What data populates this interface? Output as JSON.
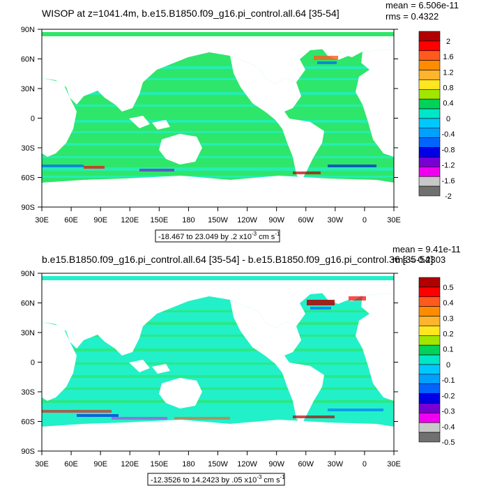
{
  "panels": [
    {
      "title": "WISOP at z=1041.4m, b.e15.B1850.f09_g16.pi_control.all.64 [35-54]",
      "mean_label": "mean = 6.506e-11",
      "rms_label": "rms = 0.4322",
      "range_label": "-18.467 to 23.049 by .2 x10",
      "range_exp": "-3",
      "range_units": "cm s",
      "range_units_exp": "-1",
      "colorbar_labels": [
        "2",
        "1.6",
        "1.2",
        "0.8",
        "0.4",
        "0",
        "-0.4",
        "-0.8",
        "-1.2",
        "-1.6",
        "-2"
      ]
    },
    {
      "title": "b.e15.B1850.f09_g16.pi_control.all.64 [35-54] - b.e15.B1850.f09_g16.pi_control.36 [35-54]",
      "mean_label": "mean = 9.41e-11",
      "rms_label": "rms = 0.2303",
      "range_label": "-12.3526 to 14.2423 by .05 x10",
      "range_exp": "-3",
      "range_units": "cm s",
      "range_units_exp": "-1",
      "colorbar_labels": [
        "0.5",
        "0.4",
        "0.3",
        "0.2",
        "0.1",
        "0",
        "-0.1",
        "-0.2",
        "-0.3",
        "-0.4",
        "-0.5"
      ]
    }
  ],
  "lat_labels": [
    "90N",
    "60N",
    "30N",
    "0",
    "30S",
    "60S",
    "90S"
  ],
  "lon_labels": [
    "30E",
    "60E",
    "90E",
    "120E",
    "150E",
    "180",
    "150W",
    "120W",
    "90W",
    "60W",
    "30W",
    "0",
    "30E"
  ],
  "colorbar_colors": [
    "#b00000",
    "#ff0000",
    "#ff5a1e",
    "#ff8c00",
    "#ffb42d",
    "#ffe61e",
    "#a0e600",
    "#00d25a",
    "#00e6c8",
    "#00c8ff",
    "#00a0ff",
    "#0064ff",
    "#0000e6",
    "#7800d2",
    "#f000f0",
    "#c8c8c8",
    "#707070"
  ],
  "ocean_colors": [
    "#2ee66a",
    "#22f0c8"
  ]
}
